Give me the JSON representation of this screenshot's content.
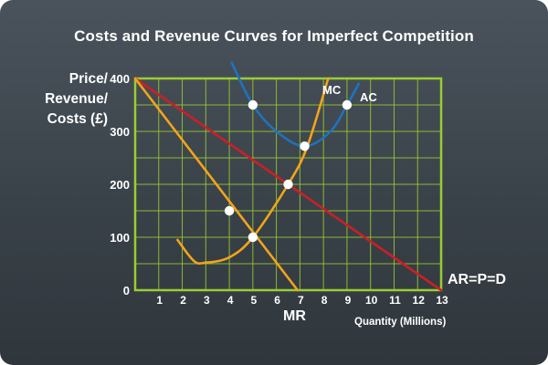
{
  "chart_data": {
    "type": "line",
    "title": "Costs and Revenue Curves for Imperfect Competition",
    "ylabel_lines": [
      "Price/",
      "Revenue/",
      "Costs (£)"
    ],
    "xlabel": "Quantity (Millions)",
    "xlim": [
      0,
      13
    ],
    "ylim": [
      0,
      400
    ],
    "x_ticks": [
      1,
      2,
      3,
      4,
      5,
      6,
      7,
      8,
      9,
      10,
      11,
      12,
      13
    ],
    "y_ticks": [
      0,
      100,
      200,
      300,
      400
    ],
    "grid": true,
    "colors": {
      "grid": "#9acd32",
      "axes": "#9acd32",
      "AC": "#1e73be",
      "MC": "#f2a41a",
      "MR": "#f2a41a",
      "AR": "#cc1f24",
      "points": "#ffffff"
    },
    "series": [
      {
        "name": "AR=P=D",
        "points": [
          [
            0,
            400
          ],
          [
            13,
            0
          ]
        ]
      },
      {
        "name": "MR",
        "points": [
          [
            0,
            400
          ],
          [
            6.9,
            0
          ]
        ]
      },
      {
        "name": "MC",
        "points": [
          [
            1.8,
            95
          ],
          [
            2.5,
            55
          ],
          [
            3,
            52
          ],
          [
            4,
            62
          ],
          [
            5,
            100
          ],
          [
            6.5,
            200
          ],
          [
            7.3,
            270
          ],
          [
            8.2,
            400
          ]
        ]
      },
      {
        "name": "AC",
        "points": [
          [
            4.1,
            430
          ],
          [
            5,
            350
          ],
          [
            6,
            300
          ],
          [
            7.2,
            272
          ],
          [
            8.3,
            300
          ],
          [
            9,
            350
          ],
          [
            9.5,
            390
          ]
        ]
      }
    ],
    "markers": [
      [
        5,
        350
      ],
      [
        9,
        350
      ],
      [
        7.2,
        272
      ],
      [
        6.5,
        200
      ],
      [
        4,
        150
      ],
      [
        5,
        100
      ]
    ]
  }
}
